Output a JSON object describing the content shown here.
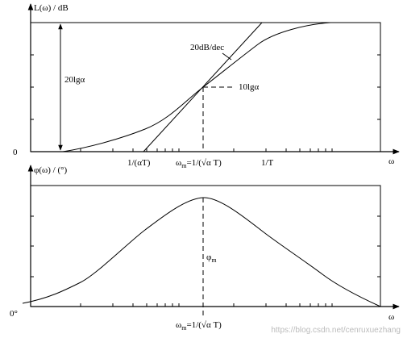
{
  "top_plot": {
    "y_label": "L(ω) / dB",
    "zero": "0",
    "height_label": "20lgα",
    "slope_label": "20dB/dec",
    "half_label": "10lgα",
    "tick_low": "1/(αT)",
    "tick_mid_omega": "ω",
    "tick_mid_sub": "m",
    "tick_mid_rest": "=1/(√α T)",
    "tick_high": "1/T",
    "x_label": "ω"
  },
  "bottom_plot": {
    "y_label": "φ(ω) / (°)",
    "zero": "0°",
    "peak_phi": "φ",
    "peak_sub": "m",
    "tick_mid_omega": "ω",
    "tick_mid_sub": "m",
    "tick_mid_rest": "=1/(√α T)",
    "x_label": "ω"
  },
  "watermark": "https://blog.csdn.net/cenruxuezhang"
}
